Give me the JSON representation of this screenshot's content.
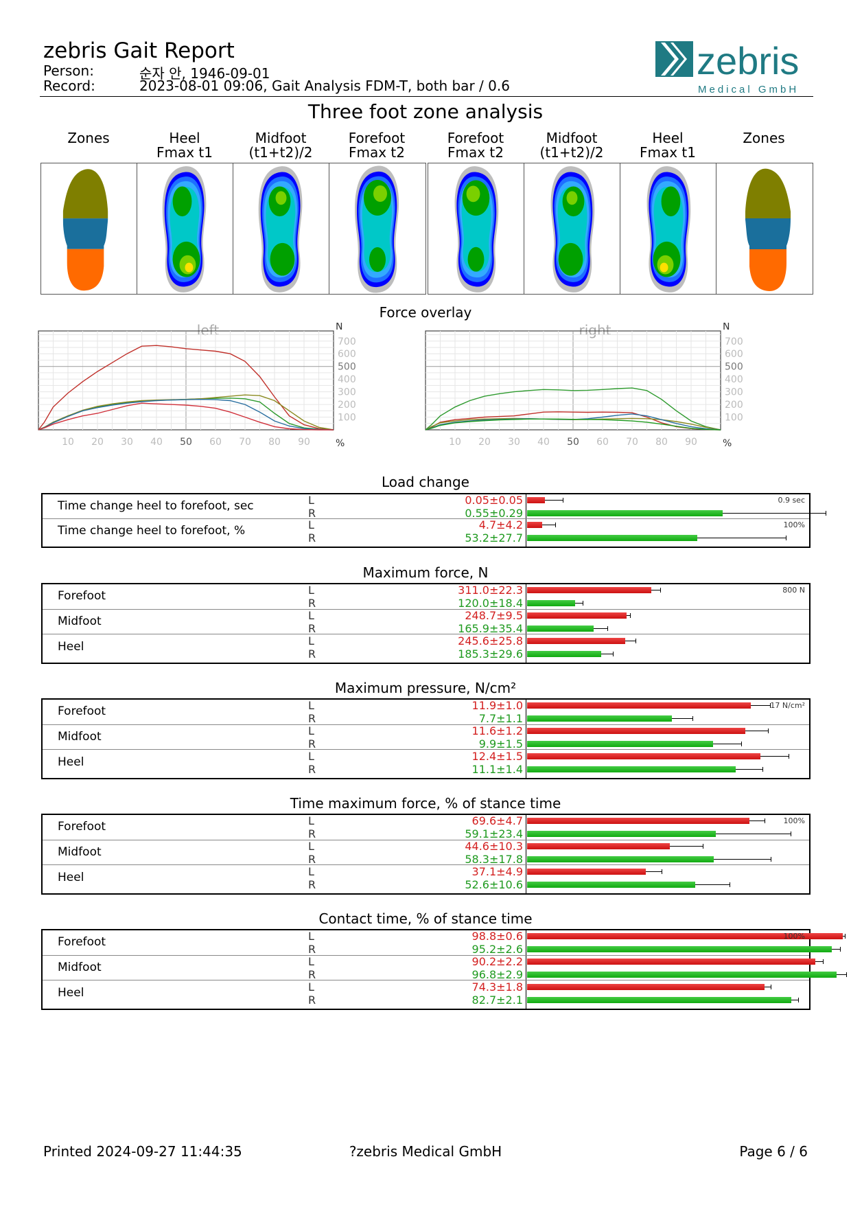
{
  "report": {
    "title": "zebris Gait Report",
    "person_label": "Person:",
    "person_value": "순자 안, 1946-09-01",
    "record_label": "Record:",
    "record_value": "2023-08-01 09:06, Gait Analysis FDM-T, both bar / 0.6"
  },
  "logo": {
    "brand": "zebris",
    "subtitle": "Medical GmbH"
  },
  "zones": {
    "title": "Three foot zone analysis",
    "columns": [
      {
        "l1": "Zones",
        "l2": ""
      },
      {
        "l1": "Heel",
        "l2": "Fmax t1"
      },
      {
        "l1": "Midfoot",
        "l2": "(t1+t2)/2"
      },
      {
        "l1": "Forefoot",
        "l2": "Fmax t2"
      },
      {
        "l1": "Forefoot",
        "l2": "Fmax t2"
      },
      {
        "l1": "Midfoot",
        "l2": "(t1+t2)/2"
      },
      {
        "l1": "Heel",
        "l2": "Fmax t1"
      },
      {
        "l1": "Zones",
        "l2": ""
      }
    ],
    "zone_colors": {
      "forefoot": "#7f7f00",
      "midfoot": "#1a6f9c",
      "heel": "#ff6a00"
    }
  },
  "force_overlay": {
    "title": "Force overlay",
    "left_label": "left",
    "right_label": "right",
    "unit_y": "N",
    "unit_x": "%"
  },
  "chart_data": [
    {
      "type": "line",
      "title": "left",
      "ylabel": "N",
      "xlabel": "%",
      "xlim": [
        0,
        100
      ],
      "ylim": [
        0,
        780
      ],
      "x_ticks": [
        10,
        20,
        30,
        40,
        50,
        60,
        70,
        80,
        90
      ],
      "y_ticks": [
        100,
        200,
        300,
        400,
        500,
        600,
        700
      ],
      "x": [
        0,
        2,
        5,
        10,
        15,
        20,
        25,
        30,
        35,
        40,
        45,
        50,
        55,
        60,
        65,
        70,
        75,
        80,
        85,
        90,
        95,
        100
      ],
      "series": [
        {
          "color": "#c0302a",
          "values": [
            0,
            60,
            180,
            290,
            380,
            460,
            530,
            600,
            660,
            665,
            655,
            640,
            630,
            620,
            600,
            540,
            420,
            260,
            110,
            40,
            10,
            0
          ]
        },
        {
          "color": "#2e9a2e",
          "values": [
            0,
            20,
            60,
            110,
            150,
            180,
            200,
            215,
            225,
            232,
            235,
            240,
            245,
            248,
            250,
            245,
            220,
            130,
            50,
            15,
            5,
            0
          ]
        },
        {
          "color": "#8a8a20",
          "values": [
            0,
            20,
            60,
            110,
            155,
            185,
            205,
            220,
            230,
            235,
            238,
            240,
            245,
            255,
            265,
            275,
            270,
            230,
            150,
            70,
            20,
            0
          ]
        },
        {
          "color": "#2a6fa0",
          "values": [
            0,
            18,
            55,
            105,
            150,
            175,
            195,
            210,
            222,
            230,
            235,
            238,
            240,
            238,
            230,
            200,
            140,
            70,
            30,
            10,
            3,
            0
          ]
        },
        {
          "color": "#d0303a",
          "values": [
            0,
            15,
            45,
            80,
            110,
            130,
            160,
            190,
            210,
            205,
            200,
            195,
            185,
            170,
            140,
            100,
            60,
            25,
            8,
            2,
            0,
            0
          ]
        }
      ]
    },
    {
      "type": "line",
      "title": "right",
      "ylabel": "N",
      "xlabel": "%",
      "xlim": [
        0,
        100
      ],
      "ylim": [
        0,
        780
      ],
      "x_ticks": [
        10,
        20,
        30,
        40,
        50,
        60,
        70,
        80,
        90
      ],
      "y_ticks": [
        100,
        200,
        300,
        400,
        500,
        600,
        700
      ],
      "x": [
        0,
        2,
        5,
        10,
        15,
        20,
        25,
        30,
        35,
        40,
        45,
        50,
        55,
        60,
        65,
        70,
        75,
        80,
        85,
        90,
        95,
        100
      ],
      "series": [
        {
          "color": "#2e9a2e",
          "values": [
            0,
            40,
            110,
            180,
            230,
            265,
            285,
            300,
            310,
            318,
            315,
            310,
            312,
            318,
            325,
            330,
            310,
            240,
            150,
            70,
            25,
            0
          ]
        },
        {
          "color": "#c0302a",
          "values": [
            0,
            20,
            60,
            80,
            90,
            100,
            105,
            110,
            125,
            140,
            142,
            140,
            138,
            140,
            138,
            135,
            100,
            55,
            25,
            10,
            3,
            0
          ]
        },
        {
          "color": "#8a8a20",
          "values": [
            0,
            25,
            55,
            70,
            80,
            85,
            88,
            90,
            88,
            85,
            82,
            80,
            82,
            85,
            88,
            90,
            88,
            80,
            65,
            45,
            20,
            0
          ]
        },
        {
          "color": "#2a6fa0",
          "values": [
            0,
            15,
            40,
            60,
            70,
            78,
            82,
            85,
            88,
            85,
            83,
            82,
            88,
            100,
            115,
            125,
            110,
            80,
            50,
            25,
            8,
            0
          ]
        },
        {
          "color": "#1f9a1f",
          "values": [
            0,
            12,
            35,
            55,
            65,
            72,
            78,
            82,
            85,
            85,
            85,
            83,
            82,
            80,
            76,
            70,
            60,
            45,
            28,
            12,
            3,
            0
          ]
        }
      ]
    }
  ],
  "load_change": {
    "title": "Load change",
    "rows": [
      {
        "label": "Time change heel to forefoot, sec",
        "scale": "0.9 sec",
        "max": 0.9,
        "L": {
          "text": "0.05±0.05",
          "value": 0.05,
          "sd": 0.05
        },
        "R": {
          "text": "0.55±0.29",
          "value": 0.55,
          "sd": 0.29
        }
      },
      {
        "label": "Time change heel to forefoot, %",
        "scale": "100%",
        "max": 100,
        "L": {
          "text": "4.7±4.2",
          "value": 4.7,
          "sd": 4.2
        },
        "R": {
          "text": "53.2±27.7",
          "value": 53.2,
          "sd": 27.7
        }
      }
    ]
  },
  "max_force": {
    "title": "Maximum force, N",
    "scale": "800 N",
    "max": 800,
    "rows": [
      {
        "label": "Forefoot",
        "L": {
          "text": "311.0±22.3",
          "value": 311.0,
          "sd": 22.3
        },
        "R": {
          "text": "120.0±18.4",
          "value": 120.0,
          "sd": 18.4
        }
      },
      {
        "label": "Midfoot",
        "L": {
          "text": "248.7±9.5",
          "value": 248.7,
          "sd": 9.5
        },
        "R": {
          "text": "165.9±35.4",
          "value": 165.9,
          "sd": 35.4
        }
      },
      {
        "label": "Heel",
        "L": {
          "text": "245.6±25.8",
          "value": 245.6,
          "sd": 25.8
        },
        "R": {
          "text": "185.3±29.6",
          "value": 185.3,
          "sd": 29.6
        }
      }
    ]
  },
  "max_pressure": {
    "title": "Maximum pressure, N/cm²",
    "scale": "17 N/cm²",
    "max": 17,
    "rows": [
      {
        "label": "Forefoot",
        "L": {
          "text": "11.9±1.0",
          "value": 11.9,
          "sd": 1.0
        },
        "R": {
          "text": "7.7±1.1",
          "value": 7.7,
          "sd": 1.1
        }
      },
      {
        "label": "Midfoot",
        "L": {
          "text": "11.6±1.2",
          "value": 11.6,
          "sd": 1.2
        },
        "R": {
          "text": "9.9±1.5",
          "value": 9.9,
          "sd": 1.5
        }
      },
      {
        "label": "Heel",
        "L": {
          "text": "12.4±1.5",
          "value": 12.4,
          "sd": 1.5
        },
        "R": {
          "text": "11.1±1.4",
          "value": 11.1,
          "sd": 1.4
        }
      }
    ]
  },
  "time_max_force": {
    "title": "Time maximum force,  % of stance time",
    "scale": "100%",
    "max": 100,
    "rows": [
      {
        "label": "Forefoot",
        "L": {
          "text": "69.6±4.7",
          "value": 69.6,
          "sd": 4.7
        },
        "R": {
          "text": "59.1±23.4",
          "value": 59.1,
          "sd": 23.4
        }
      },
      {
        "label": "Midfoot",
        "L": {
          "text": "44.6±10.3",
          "value": 44.6,
          "sd": 10.3
        },
        "R": {
          "text": "58.3±17.8",
          "value": 58.3,
          "sd": 17.8
        }
      },
      {
        "label": "Heel",
        "L": {
          "text": "37.1±4.9",
          "value": 37.1,
          "sd": 4.9
        },
        "R": {
          "text": "52.6±10.6",
          "value": 52.6,
          "sd": 10.6
        }
      }
    ]
  },
  "contact_time": {
    "title": "Contact time,  % of stance time",
    "scale": "100%",
    "max": 100,
    "rows": [
      {
        "label": "Forefoot",
        "L": {
          "text": "98.8±0.6",
          "value": 98.8,
          "sd": 0.6
        },
        "R": {
          "text": "95.2±2.6",
          "value": 95.2,
          "sd": 2.6
        }
      },
      {
        "label": "Midfoot",
        "L": {
          "text": "90.2±2.2",
          "value": 90.2,
          "sd": 2.2
        },
        "R": {
          "text": "96.8±2.9",
          "value": 96.8,
          "sd": 2.9
        }
      },
      {
        "label": "Heel",
        "L": {
          "text": "74.3±1.8",
          "value": 74.3,
          "sd": 1.8
        },
        "R": {
          "text": "82.7±2.1",
          "value": 82.7,
          "sd": 2.1
        }
      }
    ]
  },
  "side_labels": {
    "L": "L",
    "R": "R"
  },
  "footer": {
    "printed": "Printed  2024-09-27 11:44:35",
    "copyright": "?zebris Medical GmbH",
    "page": "Page  6 / 6"
  }
}
